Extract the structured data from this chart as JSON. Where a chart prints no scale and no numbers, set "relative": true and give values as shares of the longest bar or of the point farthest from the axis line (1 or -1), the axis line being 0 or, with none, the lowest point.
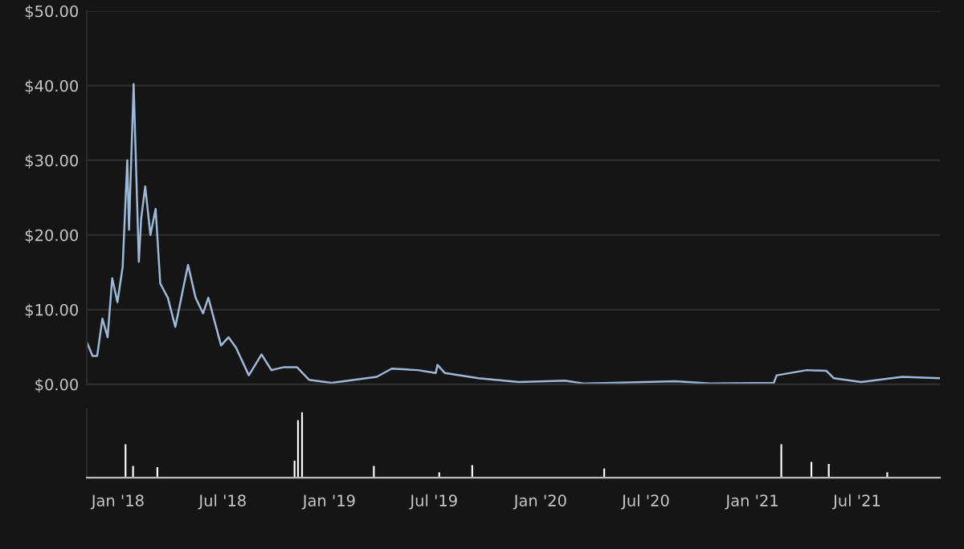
{
  "chart_data": [
    {
      "type": "line",
      "tick_labels": "y",
      "grid": "y",
      "x": [
        "2017-11-09",
        "2017-11-18",
        "2017-11-26",
        "2017-12-05",
        "2017-12-14",
        "2017-12-22",
        "2017-12-31",
        "2018-01-09",
        "2018-01-17",
        "2018-01-20",
        "2018-01-28",
        "2018-02-06",
        "2018-02-10",
        "2018-02-17",
        "2018-02-26",
        "2018-03-07",
        "2018-03-15",
        "2018-03-28",
        "2018-04-10",
        "2018-05-02",
        "2018-05-15",
        "2018-05-28",
        "2018-06-06",
        "2018-06-28",
        "2018-07-11",
        "2018-07-24",
        "2018-08-15",
        "2018-09-06",
        "2018-09-23",
        "2018-10-15",
        "2018-11-06",
        "2018-11-27",
        "2019-01-05",
        "2019-03-24",
        "2019-04-19",
        "2019-06-03",
        "2019-07-04",
        "2019-07-07",
        "2019-07-20",
        "2019-09-16",
        "2019-11-25",
        "2020-02-12",
        "2020-03-17",
        "2020-08-21",
        "2020-10-20",
        "2021-02-07",
        "2021-02-12",
        "2021-04-05",
        "2021-05-09",
        "2021-05-22",
        "2021-07-08",
        "2021-09-17",
        "2021-11-21"
      ],
      "series": [
        {
          "color": "#9cb9d9",
          "values": [
            5.5,
            3.8,
            3.8,
            8.8,
            6.3,
            14.2,
            11,
            15.7,
            30,
            20.7,
            40.2,
            16.4,
            22.2,
            26.5,
            20,
            23.5,
            13.5,
            11.6,
            7.7,
            16,
            11.6,
            9.5,
            11.6,
            5.2,
            6.3,
            4.9,
            1.2,
            4,
            1.9,
            2.3,
            2.3,
            0.6,
            0.2,
            1.0,
            2.1,
            1.9,
            1.5,
            2.6,
            1.5,
            0.8,
            0.3,
            0.5,
            0.1,
            0.4,
            0.1,
            0.2,
            1.2,
            1.9,
            1.8,
            0.8,
            0.3,
            1.0,
            0.8
          ]
        }
      ],
      "xlim": [
        "2017-11-08",
        "2021-11-21"
      ],
      "ylim": [
        0,
        50
      ],
      "yticks": [
        {
          "value": 0,
          "label": "$0.00"
        },
        {
          "value": 10,
          "label": "$10.00"
        },
        {
          "value": 20,
          "label": "$20.00"
        },
        {
          "value": 30,
          "label": "$30.00"
        },
        {
          "value": 40,
          "label": "$40.00"
        },
        {
          "value": 50,
          "label": "$50.00"
        }
      ]
    },
    {
      "type": "bar",
      "relative": true,
      "tick_labels": "x",
      "grid": false,
      "x": [
        "2018-01-14",
        "2018-01-27",
        "2018-03-10",
        "2018-11-02",
        "2018-11-08",
        "2018-11-15",
        "2019-03-19",
        "2019-07-10",
        "2019-09-05",
        "2020-04-20",
        "2021-02-20",
        "2021-04-13",
        "2021-05-13",
        "2021-08-22"
      ],
      "series": [
        {
          "color": "#ffffff",
          "values": [
            0.51,
            0.18,
            0.16,
            0.26,
            0.88,
            1,
            0.18,
            0.08,
            0.19,
            0.14,
            0.51,
            0.24,
            0.21,
            0.08
          ]
        }
      ],
      "xlim": [
        "2017-11-08",
        "2021-11-21"
      ],
      "xticks": [
        {
          "value": "2018-01-01",
          "label": "Jan '18"
        },
        {
          "value": "2018-07-01",
          "label": "Jul '18"
        },
        {
          "value": "2019-01-01",
          "label": "Jan '19"
        },
        {
          "value": "2019-07-01",
          "label": "Jul '19"
        },
        {
          "value": "2020-01-01",
          "label": "Jan '20"
        },
        {
          "value": "2020-07-01",
          "label": "Jul '20"
        },
        {
          "value": "2021-01-01",
          "label": "Jan '21"
        },
        {
          "value": "2021-07-01",
          "label": "Jul '21"
        }
      ]
    }
  ]
}
